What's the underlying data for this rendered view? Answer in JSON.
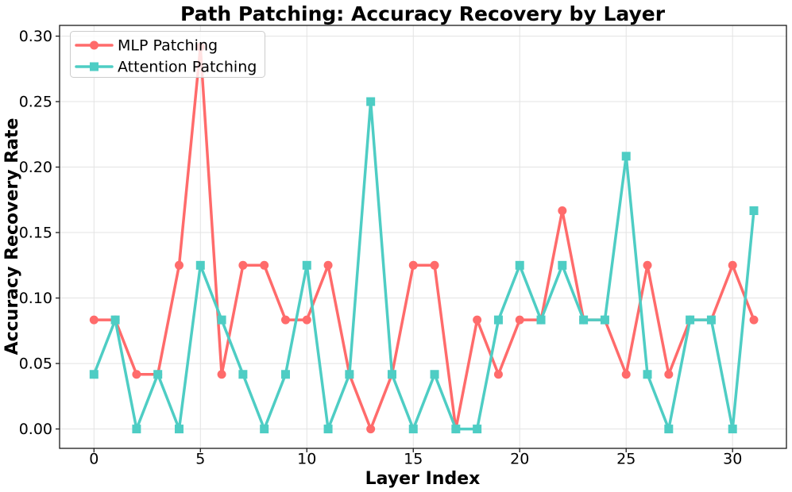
{
  "chart_data": {
    "type": "line",
    "title": "Path Patching: Accuracy Recovery by Layer",
    "xlabel": "Layer Index",
    "ylabel": "Accuracy Recovery Rate",
    "x": [
      0,
      1,
      2,
      3,
      4,
      5,
      6,
      7,
      8,
      9,
      10,
      11,
      12,
      13,
      14,
      15,
      16,
      17,
      18,
      19,
      20,
      21,
      22,
      23,
      24,
      25,
      26,
      27,
      28,
      29,
      30,
      31
    ],
    "series": [
      {
        "name": "MLP Patching",
        "color": "#FF6B6B",
        "marker": "circle",
        "values": [
          0.0833,
          0.0833,
          0.0417,
          0.0417,
          0.125,
          0.2917,
          0.0417,
          0.125,
          0.125,
          0.0833,
          0.0833,
          0.125,
          0.0417,
          0.0,
          0.0417,
          0.125,
          0.125,
          0.0,
          0.0833,
          0.0417,
          0.0833,
          0.0833,
          0.1667,
          0.0833,
          0.0833,
          0.0417,
          0.125,
          0.0417,
          0.0833,
          0.0833,
          0.125,
          0.0833
        ]
      },
      {
        "name": "Attention Patching",
        "color": "#4ECDC4",
        "marker": "square",
        "values": [
          0.0417,
          0.0833,
          0.0,
          0.0417,
          0.0,
          0.125,
          0.0833,
          0.0417,
          0.0,
          0.0417,
          0.125,
          0.0,
          0.0417,
          0.25,
          0.0417,
          0.0,
          0.0417,
          0.0,
          0.0,
          0.0833,
          0.125,
          0.0833,
          0.125,
          0.0833,
          0.0833,
          0.2083,
          0.0417,
          0.0,
          0.0833,
          0.0833,
          0.0,
          0.1667
        ]
      }
    ],
    "xticks": {
      "values": [
        0,
        5,
        10,
        15,
        20,
        25,
        30
      ],
      "labels": [
        "0",
        "5",
        "10",
        "15",
        "20",
        "25",
        "30"
      ]
    },
    "yticks": {
      "values": [
        0.0,
        0.05,
        0.1,
        0.15,
        0.2,
        0.25,
        0.3
      ],
      "labels": [
        "0.00",
        "0.05",
        "0.10",
        "0.15",
        "0.20",
        "0.25",
        "0.30"
      ]
    },
    "xlim": [
      -1.616,
      32.53
    ],
    "ylim": [
      -0.0148,
      0.3082
    ],
    "grid": true,
    "legend": {
      "position": "upper-left",
      "items": [
        "MLP Patching",
        "Attention Patching"
      ]
    },
    "colors": {
      "background": "#ffffff",
      "grid": "#e3e3e3",
      "spine": "#1a1a1a",
      "text": "#000000",
      "mlp": "#FF6B6B",
      "attention": "#4ECDC4"
    }
  }
}
